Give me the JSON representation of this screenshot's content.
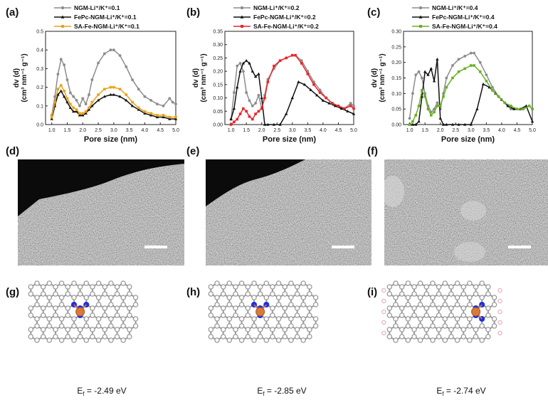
{
  "colors": {
    "ngm": "#8c8c8c",
    "fepc": "#111111",
    "safe_a": "#e8a317",
    "safe_b": "#e8252a",
    "safe_c": "#6ab023",
    "carbon": "#9a9a9a",
    "nitrogen": "#1f2fe0",
    "iron": "#d97a3a",
    "hydrogen": "#e4b4bd"
  },
  "chart_data": [
    {
      "panel": "(a)",
      "type": "line",
      "xlabel": "Pore size (nm)",
      "ylabel_line1": "dv (d)",
      "ylabel_line2": "(cm³ nm⁻¹ g⁻¹)",
      "xlim": [
        0.8,
        5.0
      ],
      "ylim": [
        0,
        0.5
      ],
      "xticks": [
        "1.0",
        "1.5",
        "2.0",
        "2.5",
        "3.0",
        "3.5",
        "4.0",
        "4.5",
        "5.0"
      ],
      "xtick_values": [
        1.0,
        1.5,
        2.0,
        2.5,
        3.0,
        3.5,
        4.0,
        4.5,
        5.0
      ],
      "yticks": [
        "0.0",
        "0.1",
        "0.2",
        "0.3",
        "0.4",
        "0.5"
      ],
      "ytick_values": [
        0.0,
        0.1,
        0.2,
        0.3,
        0.4,
        0.5
      ],
      "legend_position": "top-left",
      "series": [
        {
          "name": "NGM-Li⁺/K⁺=0.1",
          "color": "ngm",
          "marker": "circle",
          "x": [
            1.0,
            1.1,
            1.2,
            1.3,
            1.4,
            1.5,
            1.6,
            1.7,
            1.8,
            1.9,
            2.0,
            2.1,
            2.2,
            2.3,
            2.5,
            2.7,
            2.9,
            3.0,
            3.2,
            3.4,
            3.6,
            3.8,
            4.0,
            4.2,
            4.4,
            4.6,
            4.8,
            4.9,
            5.0
          ],
          "y": [
            0.05,
            0.15,
            0.27,
            0.35,
            0.32,
            0.24,
            0.17,
            0.15,
            0.13,
            0.1,
            0.14,
            0.11,
            0.16,
            0.24,
            0.33,
            0.38,
            0.4,
            0.4,
            0.37,
            0.31,
            0.24,
            0.19,
            0.15,
            0.13,
            0.11,
            0.1,
            0.14,
            0.12,
            0.11
          ]
        },
        {
          "name": "FePc-NGM-Li⁺/K⁺=0.1",
          "color": "fepc",
          "marker": "triangle",
          "x": [
            1.0,
            1.1,
            1.2,
            1.3,
            1.4,
            1.5,
            1.6,
            1.7,
            1.8,
            1.9,
            2.0,
            2.1,
            2.2,
            2.3,
            2.5,
            2.7,
            2.9,
            3.0,
            3.2,
            3.4,
            3.6,
            3.8,
            4.0,
            4.2,
            4.4,
            4.6,
            4.8,
            5.0
          ],
          "y": [
            0.03,
            0.1,
            0.16,
            0.18,
            0.15,
            0.12,
            0.09,
            0.07,
            0.07,
            0.05,
            0.05,
            0.06,
            0.08,
            0.1,
            0.13,
            0.15,
            0.16,
            0.16,
            0.15,
            0.13,
            0.1,
            0.08,
            0.06,
            0.05,
            0.04,
            0.04,
            0.03,
            0.03
          ]
        },
        {
          "name": "SA-Fe-NGM-Li⁺/K⁺=0.1",
          "color": "safe_a",
          "marker": "square",
          "x": [
            1.0,
            1.1,
            1.2,
            1.3,
            1.4,
            1.5,
            1.6,
            1.7,
            1.8,
            1.9,
            2.0,
            2.1,
            2.2,
            2.3,
            2.5,
            2.7,
            2.9,
            3.0,
            3.2,
            3.4,
            3.6,
            3.8,
            4.0,
            4.2,
            4.4,
            4.6,
            4.8,
            5.0
          ],
          "y": [
            0.04,
            0.12,
            0.19,
            0.21,
            0.18,
            0.14,
            0.11,
            0.09,
            0.08,
            0.06,
            0.06,
            0.07,
            0.09,
            0.12,
            0.16,
            0.19,
            0.2,
            0.2,
            0.19,
            0.16,
            0.12,
            0.09,
            0.07,
            0.06,
            0.05,
            0.05,
            0.04,
            0.04
          ]
        }
      ]
    },
    {
      "panel": "(b)",
      "type": "line",
      "xlabel": "Pore size (nm)",
      "ylabel_line1": "dv (d)",
      "ylabel_line2": "(cm³ nm⁻¹ g⁻¹)",
      "xlim": [
        0.8,
        5.0
      ],
      "ylim": [
        0,
        0.35
      ],
      "xticks": [
        "1.0",
        "1.5",
        "2.0",
        "2.5",
        "3.0",
        "3.5",
        "4.0",
        "4.5",
        "5.0"
      ],
      "xtick_values": [
        1.0,
        1.5,
        2.0,
        2.5,
        3.0,
        3.5,
        4.0,
        4.5,
        5.0
      ],
      "yticks": [
        "0.00",
        "0.05",
        "0.10",
        "0.15",
        "0.20",
        "0.25",
        "0.30",
        "0.35"
      ],
      "ytick_values": [
        0.0,
        0.05,
        0.1,
        0.15,
        0.2,
        0.25,
        0.3,
        0.35
      ],
      "legend_position": "top-left",
      "series": [
        {
          "name": "NGM-Li⁺/K⁺=0.2",
          "color": "ngm",
          "marker": "circle",
          "x": [
            1.0,
            1.1,
            1.2,
            1.3,
            1.4,
            1.5,
            1.6,
            1.7,
            1.8,
            1.9,
            2.0,
            2.1,
            2.2,
            2.4,
            2.6,
            2.8,
            3.0,
            3.1,
            3.3,
            3.5,
            3.7,
            3.9,
            4.1,
            4.3,
            4.5,
            4.7,
            4.9,
            5.0
          ],
          "y": [
            0.02,
            0.12,
            0.22,
            0.23,
            0.2,
            0.12,
            0.09,
            0.07,
            0.08,
            0.11,
            0.06,
            0.11,
            0.17,
            0.21,
            0.24,
            0.25,
            0.26,
            0.26,
            0.24,
            0.2,
            0.16,
            0.13,
            0.1,
            0.08,
            0.07,
            0.06,
            0.08,
            0.07
          ]
        },
        {
          "name": "FePc-NGM-Li⁺/K⁺=0.2",
          "color": "fepc",
          "marker": "triangle",
          "x": [
            1.0,
            1.1,
            1.2,
            1.3,
            1.4,
            1.5,
            1.6,
            1.7,
            1.8,
            1.9,
            2.0,
            2.1,
            2.2,
            2.4,
            2.6,
            2.8,
            3.0,
            3.2,
            3.4,
            3.6,
            3.8,
            4.0,
            4.2,
            4.4,
            4.6,
            4.8,
            5.0
          ],
          "y": [
            0.02,
            0.06,
            0.14,
            0.2,
            0.23,
            0.24,
            0.23,
            0.2,
            0.18,
            0.19,
            0.1,
            0.0,
            0.0,
            0.0,
            0.0,
            0.04,
            0.1,
            0.16,
            0.15,
            0.13,
            0.11,
            0.09,
            0.08,
            0.07,
            0.06,
            0.05,
            0.04
          ]
        },
        {
          "name": "SA-Fe-NGM-Li⁺/K⁺=0.2",
          "color": "safe_b",
          "marker": "square",
          "x": [
            1.0,
            1.1,
            1.2,
            1.3,
            1.4,
            1.5,
            1.6,
            1.7,
            1.8,
            1.9,
            2.0,
            2.1,
            2.2,
            2.4,
            2.6,
            2.8,
            3.0,
            3.1,
            3.3,
            3.5,
            3.7,
            3.9,
            4.1,
            4.3,
            4.5,
            4.7,
            4.9,
            5.0
          ],
          "y": [
            0.0,
            0.01,
            0.02,
            0.04,
            0.06,
            0.05,
            0.03,
            0.02,
            0.04,
            0.05,
            0.06,
            0.1,
            0.16,
            0.22,
            0.24,
            0.25,
            0.26,
            0.26,
            0.23,
            0.19,
            0.15,
            0.12,
            0.1,
            0.08,
            0.07,
            0.06,
            0.07,
            0.06
          ]
        }
      ]
    },
    {
      "panel": "(c)",
      "type": "line",
      "xlabel": "Pore size (nm)",
      "ylabel_line1": "dv (d)",
      "ylabel_line2": "(cm³ nm⁻¹ g⁻¹)",
      "xlim": [
        0.8,
        5.0
      ],
      "ylim": [
        0,
        0.3
      ],
      "xticks": [
        "1.0",
        "1.5",
        "2.0",
        "2.5",
        "3.0",
        "3.5",
        "4.0",
        "4.5",
        "5.0"
      ],
      "xtick_values": [
        1.0,
        1.5,
        2.0,
        2.5,
        3.0,
        3.5,
        4.0,
        4.5,
        5.0
      ],
      "yticks": [
        "0.00",
        "0.05",
        "0.10",
        "0.15",
        "0.20",
        "0.25",
        "0.30"
      ],
      "ytick_values": [
        0.0,
        0.05,
        0.1,
        0.15,
        0.2,
        0.25,
        0.3
      ],
      "legend_position": "top-left",
      "series": [
        {
          "name": "NGM-Li⁺/K⁺=0.4",
          "color": "ngm",
          "marker": "circle",
          "x": [
            1.0,
            1.1,
            1.2,
            1.3,
            1.4,
            1.5,
            1.6,
            1.7,
            1.8,
            1.9,
            2.0,
            2.1,
            2.2,
            2.4,
            2.6,
            2.8,
            3.0,
            3.1,
            3.3,
            3.5,
            3.7,
            3.9,
            4.1,
            4.3,
            4.5,
            4.7,
            4.9,
            5.0
          ],
          "y": [
            0.02,
            0.1,
            0.16,
            0.17,
            0.15,
            0.1,
            0.06,
            0.04,
            0.05,
            0.07,
            0.05,
            0.1,
            0.15,
            0.19,
            0.21,
            0.22,
            0.23,
            0.23,
            0.2,
            0.16,
            0.12,
            0.09,
            0.07,
            0.05,
            0.05,
            0.05,
            0.06,
            0.05
          ]
        },
        {
          "name": "FePc-NGM-Li⁺/K⁺=0.4",
          "color": "fepc",
          "marker": "triangle",
          "x": [
            1.0,
            1.1,
            1.2,
            1.3,
            1.4,
            1.5,
            1.6,
            1.7,
            1.8,
            1.9,
            2.0,
            2.1,
            2.2,
            2.4,
            2.6,
            2.8,
            3.0,
            3.2,
            3.4,
            3.6,
            3.8,
            4.0,
            4.2,
            4.4,
            4.6,
            4.8,
            5.0
          ],
          "y": [
            0.0,
            0.0,
            0.0,
            0.01,
            0.09,
            0.17,
            0.16,
            0.18,
            0.14,
            0.21,
            0.02,
            0.0,
            0.0,
            0.0,
            0.0,
            0.0,
            0.0,
            0.05,
            0.13,
            0.12,
            0.1,
            0.08,
            0.06,
            0.05,
            0.05,
            0.06,
            0.01
          ]
        },
        {
          "name": "SA-Fe-NGM-Li⁺/K⁺=0.4",
          "color": "safe_c",
          "marker": "square",
          "x": [
            1.0,
            1.1,
            1.2,
            1.3,
            1.4,
            1.5,
            1.6,
            1.7,
            1.8,
            1.9,
            2.0,
            2.1,
            2.2,
            2.4,
            2.6,
            2.8,
            3.0,
            3.1,
            3.3,
            3.5,
            3.7,
            3.9,
            4.1,
            4.3,
            4.5,
            4.7,
            4.9,
            5.0
          ],
          "y": [
            0.0,
            0.01,
            0.03,
            0.06,
            0.11,
            0.09,
            0.05,
            0.03,
            0.04,
            0.06,
            0.06,
            0.09,
            0.12,
            0.15,
            0.17,
            0.18,
            0.19,
            0.19,
            0.17,
            0.14,
            0.11,
            0.09,
            0.07,
            0.06,
            0.05,
            0.05,
            0.06,
            0.05
          ]
        }
      ]
    }
  ],
  "micrographs": [
    {
      "panel": "(d)",
      "dark_region": "upper-left"
    },
    {
      "panel": "(e)",
      "dark_region": "upper-left"
    },
    {
      "panel": "(f)",
      "dark_region": "none"
    }
  ],
  "models": [
    {
      "panel": "(g)",
      "energy_prefix": "E",
      "energy_sub": "f",
      "energy_value": " = -2.49 eV",
      "site": "center"
    },
    {
      "panel": "(h)",
      "energy_prefix": "E",
      "energy_sub": "f",
      "energy_value": " = -2.85 eV",
      "site": "center-tilted"
    },
    {
      "panel": "(i)",
      "energy_prefix": "E",
      "energy_sub": "f",
      "energy_value": " = -2.74 eV",
      "site": "edge"
    }
  ]
}
